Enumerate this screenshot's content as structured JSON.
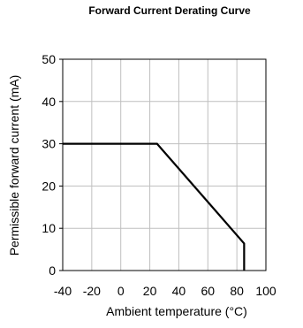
{
  "chart_data": {
    "type": "line",
    "title": "Forward Current Derating  Curve",
    "xlabel": "Ambient temperature (°C)",
    "ylabel": "Permissible forward current (mA)",
    "xlim": [
      -40,
      100
    ],
    "ylim": [
      0,
      50
    ],
    "x_ticks": [
      -40,
      -20,
      0,
      20,
      40,
      60,
      80,
      100
    ],
    "y_ticks": [
      0,
      10,
      20,
      30,
      40,
      50
    ],
    "x_tick_labels": [
      "-40",
      "-20",
      "0",
      "20",
      "40",
      "60",
      "80",
      "100"
    ],
    "y_tick_labels": [
      "0",
      "10",
      "20",
      "30",
      "40",
      "50"
    ],
    "grid": true,
    "legend": "none",
    "series": [
      {
        "x": [
          -40,
          25,
          85,
          85
        ],
        "y": [
          30,
          30,
          6.4,
          0
        ],
        "color": "#000000"
      }
    ],
    "colors": {
      "grid": "#bfbfbf",
      "axes": "#000000",
      "line": "#000000"
    }
  }
}
